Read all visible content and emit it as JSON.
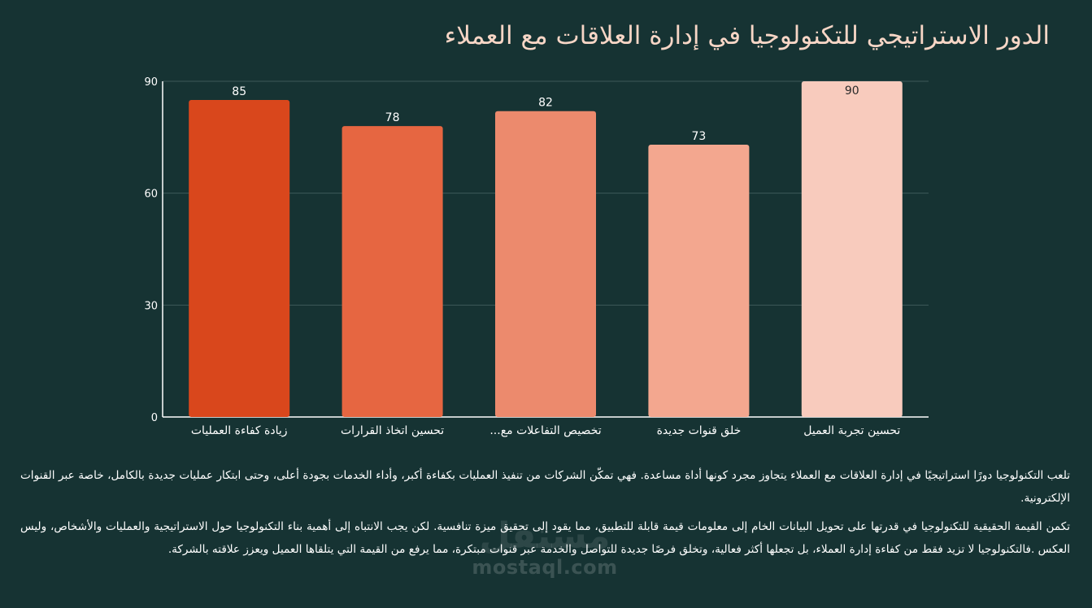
{
  "title": "الدور الاستراتيجي للتكنولوجيا في إدارة العلاقات مع العملاء",
  "chart_data": {
    "type": "bar",
    "categories": [
      "زيادة كفاءة العمليات",
      "تحسين اتخاذ القرارات",
      "تخصيص التفاعلات مع...",
      "خلق قنوات جديدة",
      "تحسين تجربة العميل"
    ],
    "values": [
      85,
      78,
      82,
      73,
      90
    ],
    "data_labels": [
      "85",
      "78",
      "82",
      "73",
      "90"
    ],
    "ylim": [
      0,
      90
    ],
    "yticks": [
      0,
      30,
      60,
      90
    ],
    "grid": true,
    "colors": [
      "#d9471c",
      "#e66641",
      "#ec8a6d",
      "#f3a78f",
      "#f8cbbd"
    ],
    "value_label_color": "#ffffff",
    "last_value_label_color": "#2a2a2a"
  },
  "paragraphs": [
    "تلعب التكنولوجيا دورًا استراتيجيًا في إدارة العلاقات مع العملاء يتجاوز مجرد كونها أداة مساعدة. فهي تمكّن الشركات من تنفيذ العمليات بكفاءة أكبر، وأداء الخدمات بجودة أعلى، وحتى ابتكار عمليات جديدة بالكامل، خاصة عبر القنوات الإلكترونية.",
    "تكمن القيمة الحقيقية للتكنولوجيا في قدرتها على تحويل البيانات الخام إلى معلومات قيمة قابلة للتطبيق، مما يقود إلى تحقيق ميزة تنافسية. لكن يجب الانتباه إلى أهمية بناء التكنولوجيا حول الاستراتيجية والعمليات والأشخاص، وليس العكس .فالتكنولوجيا لا تزيد فقط من كفاءة إدارة العملاء، بل تجعلها أكثر فعالية، وتخلق فرصًا جديدة للتواصل والخدمة عبر قنوات مبتكرة، مما يرفع من القيمة التي يتلقاها العميل ويعزز علاقته بالشركة."
  ],
  "watermark": {
    "arabic": "مستقل",
    "latin": "mostaql.com"
  }
}
